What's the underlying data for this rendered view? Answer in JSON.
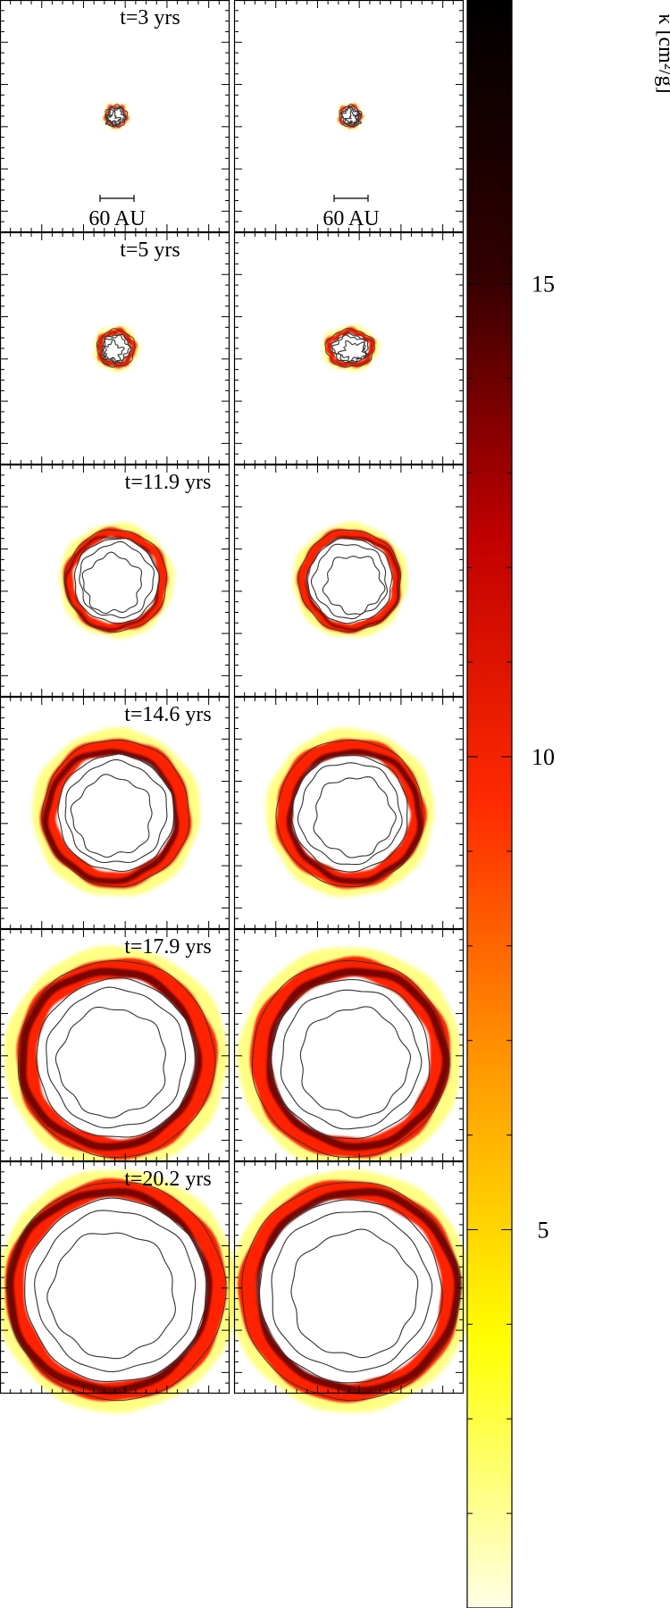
{
  "chart_data": {
    "type": "heatmap",
    "colorbar": {
      "label": "κ [cm²/g]",
      "ticks": [
        5,
        10,
        15
      ],
      "tick_labels": [
        "5",
        "10",
        "15"
      ],
      "range": [
        1,
        18
      ],
      "colormap": "hot_r",
      "stops": [
        "#ffffe6",
        "#ffff00",
        "#ff9a00",
        "#ff2a00",
        "#c00000",
        "#300000",
        "#000000"
      ]
    },
    "scale_bar": {
      "label": "60 AU",
      "length_au": 60
    },
    "rows": [
      {
        "time_label": "t=3 yrs",
        "time": 3
      },
      {
        "time_label": "t=5 yrs",
        "time": 5
      },
      {
        "time_label": "t=11.9 yrs",
        "time": 11.9
      },
      {
        "time_label": "t=14.6 yrs",
        "time": 14.6
      },
      {
        "time_label": "t=17.9 yrs",
        "time": 17.9
      },
      {
        "time_label": "t=20.2 yrs",
        "time": 20.2
      }
    ]
  }
}
